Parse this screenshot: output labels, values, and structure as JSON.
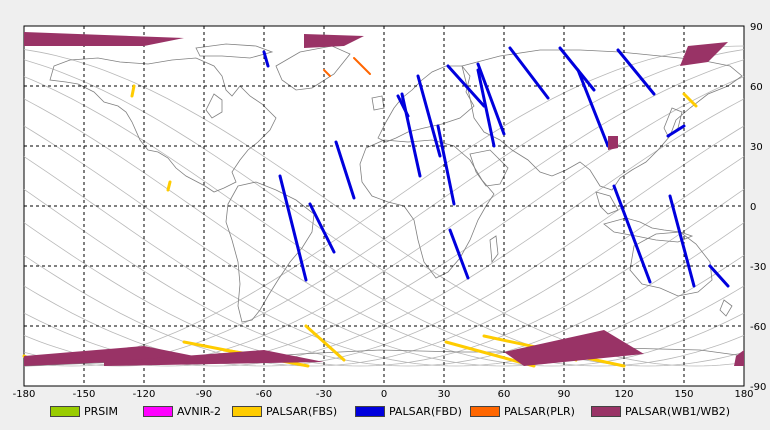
{
  "map": {
    "x_ticks": [
      "-180",
      "-150",
      "-120",
      "-90",
      "-60",
      "-30",
      "0",
      "30",
      "60",
      "90",
      "120",
      "150",
      "180"
    ],
    "y_ticks": [
      "90",
      "60",
      "30",
      "0",
      "-30",
      "-60",
      "-90"
    ]
  },
  "legend": [
    {
      "label": "PRSIM",
      "color": "#99cc00"
    },
    {
      "label": "AVNIR-2",
      "color": "#ff00ff"
    },
    {
      "label": "PALSAR(FBS)",
      "color": "#ffcc00"
    },
    {
      "label": "PALSAR(FBD)",
      "color": "#0000dd"
    },
    {
      "label": "PALSAR(PLR)",
      "color": "#ff6600"
    },
    {
      "label": "PALSAR(WB1/WB2)",
      "color": "#993366"
    }
  ],
  "colors": {
    "fbd": "#0000dd",
    "fbs": "#ffcc00",
    "plr": "#ff6600",
    "wb": "#993366",
    "coast": "#808080",
    "orbit": "#b8b8b8"
  }
}
